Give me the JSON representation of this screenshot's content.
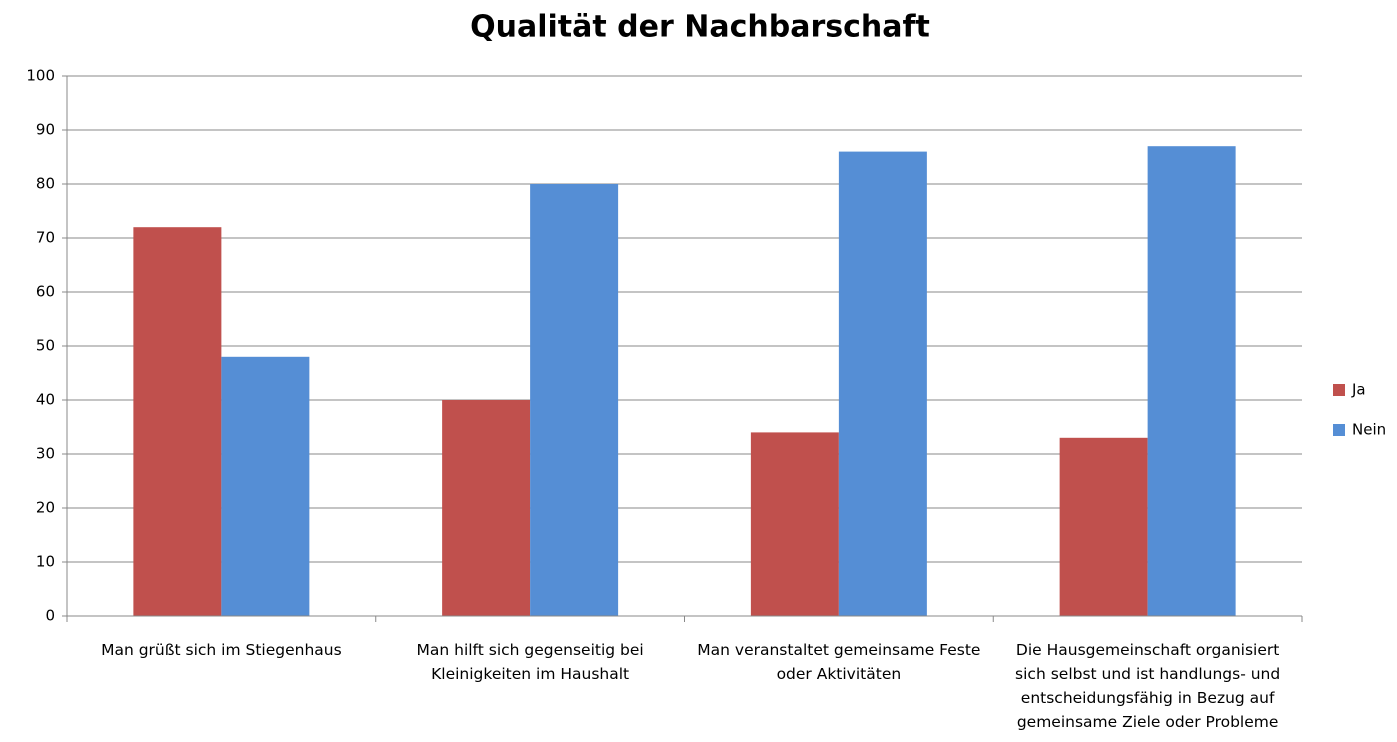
{
  "chart_data": {
    "type": "bar",
    "title": "Qualität der Nachbarschaft",
    "categories": [
      "Man grüßt sich im Stiegenhaus",
      "Man hilft sich gegenseitig bei Kleinigkeiten im Haushalt",
      "Man veranstaltet gemeinsame Feste oder Aktivitäten",
      "Die Hausgemeinschaft organisiert sich selbst und ist handlungs- und entscheidungsfähig in Bezug auf gemeinsame Ziele oder Probleme"
    ],
    "series": [
      {
        "name": "Ja",
        "color": "#c0504d",
        "values": [
          72,
          40,
          34,
          33
        ]
      },
      {
        "name": "Nein",
        "color": "#558ed5",
        "values": [
          48,
          80,
          86,
          87
        ]
      }
    ],
    "ylim": [
      0,
      100
    ],
    "yticks": [
      0,
      10,
      20,
      30,
      40,
      50,
      60,
      70,
      80,
      90,
      100
    ],
    "grid": true,
    "legend": "right"
  }
}
